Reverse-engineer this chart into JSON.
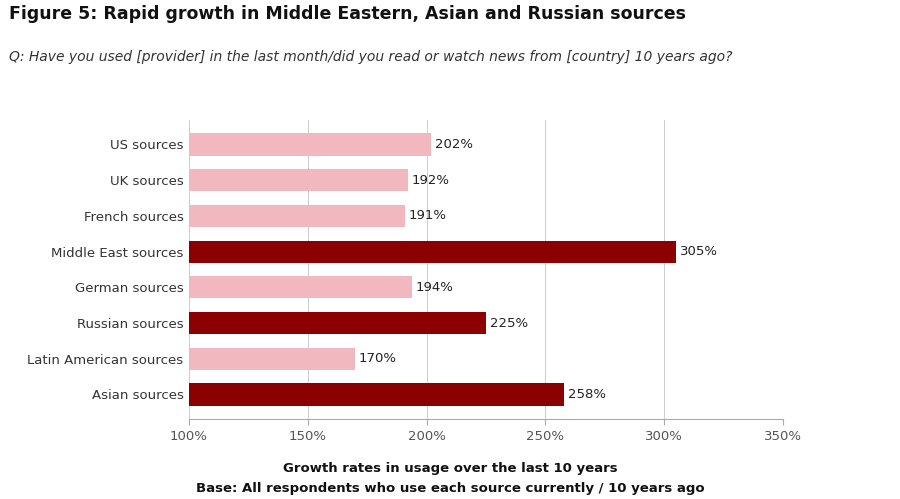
{
  "title": "Figure 5: Rapid growth in Middle Eastern, Asian and Russian sources",
  "subtitle": "Q: Have you used [provider] in the last month/did you read or watch news from [country] 10 years ago?",
  "footer_line1": "Growth rates in usage over the last 10 years",
  "footer_line2": "Base: All respondents who use each source currently / 10 years ago",
  "categories": [
    "US sources",
    "UK sources",
    "French sources",
    "Middle East sources",
    "German sources",
    "Russian sources",
    "Latin American sources",
    "Asian sources"
  ],
  "values": [
    202,
    192,
    191,
    305,
    194,
    225,
    170,
    258
  ],
  "highlight": [
    false,
    false,
    false,
    true,
    false,
    true,
    false,
    true
  ],
  "bar_color_normal": "#f2b8c0",
  "bar_color_highlight": "#8b0000",
  "xlim": [
    100,
    350
  ],
  "xticks": [
    100,
    150,
    200,
    250,
    300,
    350
  ],
  "xtick_labels": [
    "100%",
    "150%",
    "200%",
    "250%",
    "300%",
    "350%"
  ],
  "background_color": "#ffffff",
  "title_fontsize": 12.5,
  "subtitle_fontsize": 10,
  "bar_label_fontsize": 9.5,
  "tick_fontsize": 9.5,
  "footer_fontsize": 9.5,
  "bar_height": 0.62
}
